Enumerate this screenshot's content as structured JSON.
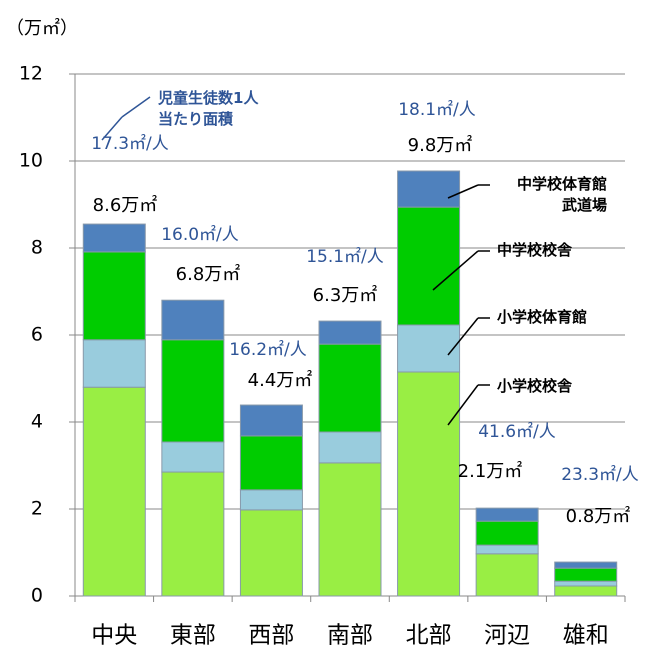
{
  "chart_data": {
    "type": "stacked_bar",
    "y_unit_label": "（万㎡）",
    "categories": [
      "中央",
      "東部",
      "西部",
      "南部",
      "北部",
      "河辺",
      "雄和"
    ],
    "series": [
      {
        "name": "小学校校舎",
        "color": "#99ee44",
        "values": [
          4.8,
          2.85,
          1.98,
          3.06,
          5.15,
          0.97,
          0.23
        ]
      },
      {
        "name": "小学校体育館",
        "color": "#99ccdd",
        "values": [
          1.09,
          0.69,
          0.46,
          0.71,
          1.08,
          0.2,
          0.11
        ]
      },
      {
        "name": "中学校校舎",
        "color": "#00cc00",
        "values": [
          2.02,
          2.35,
          1.24,
          2.02,
          2.71,
          0.55,
          0.3
        ]
      },
      {
        "name": "中学校体育館\n武道場",
        "color": "#4f81bd",
        "values": [
          0.64,
          0.91,
          0.71,
          0.53,
          0.83,
          0.3,
          0.14
        ]
      }
    ],
    "total_labels": [
      "8.6万㎡",
      "6.8万㎡",
      "4.4万㎡",
      "6.3万㎡",
      "9.8万㎡",
      "2.1万㎡",
      "0.8万㎡"
    ],
    "per_student_labels": [
      "17.3㎡/人",
      "16.0㎡/人",
      "16.2㎡/人",
      "15.1㎡/人",
      "18.1㎡/人",
      "41.6㎡/人",
      "23.3㎡/人"
    ],
    "per_student_note": "児童生徒数1人\n当たり面積",
    "ylim": [
      0,
      12
    ],
    "yticks": [
      0,
      2,
      4,
      6,
      8,
      10,
      12
    ],
    "grid": true
  }
}
